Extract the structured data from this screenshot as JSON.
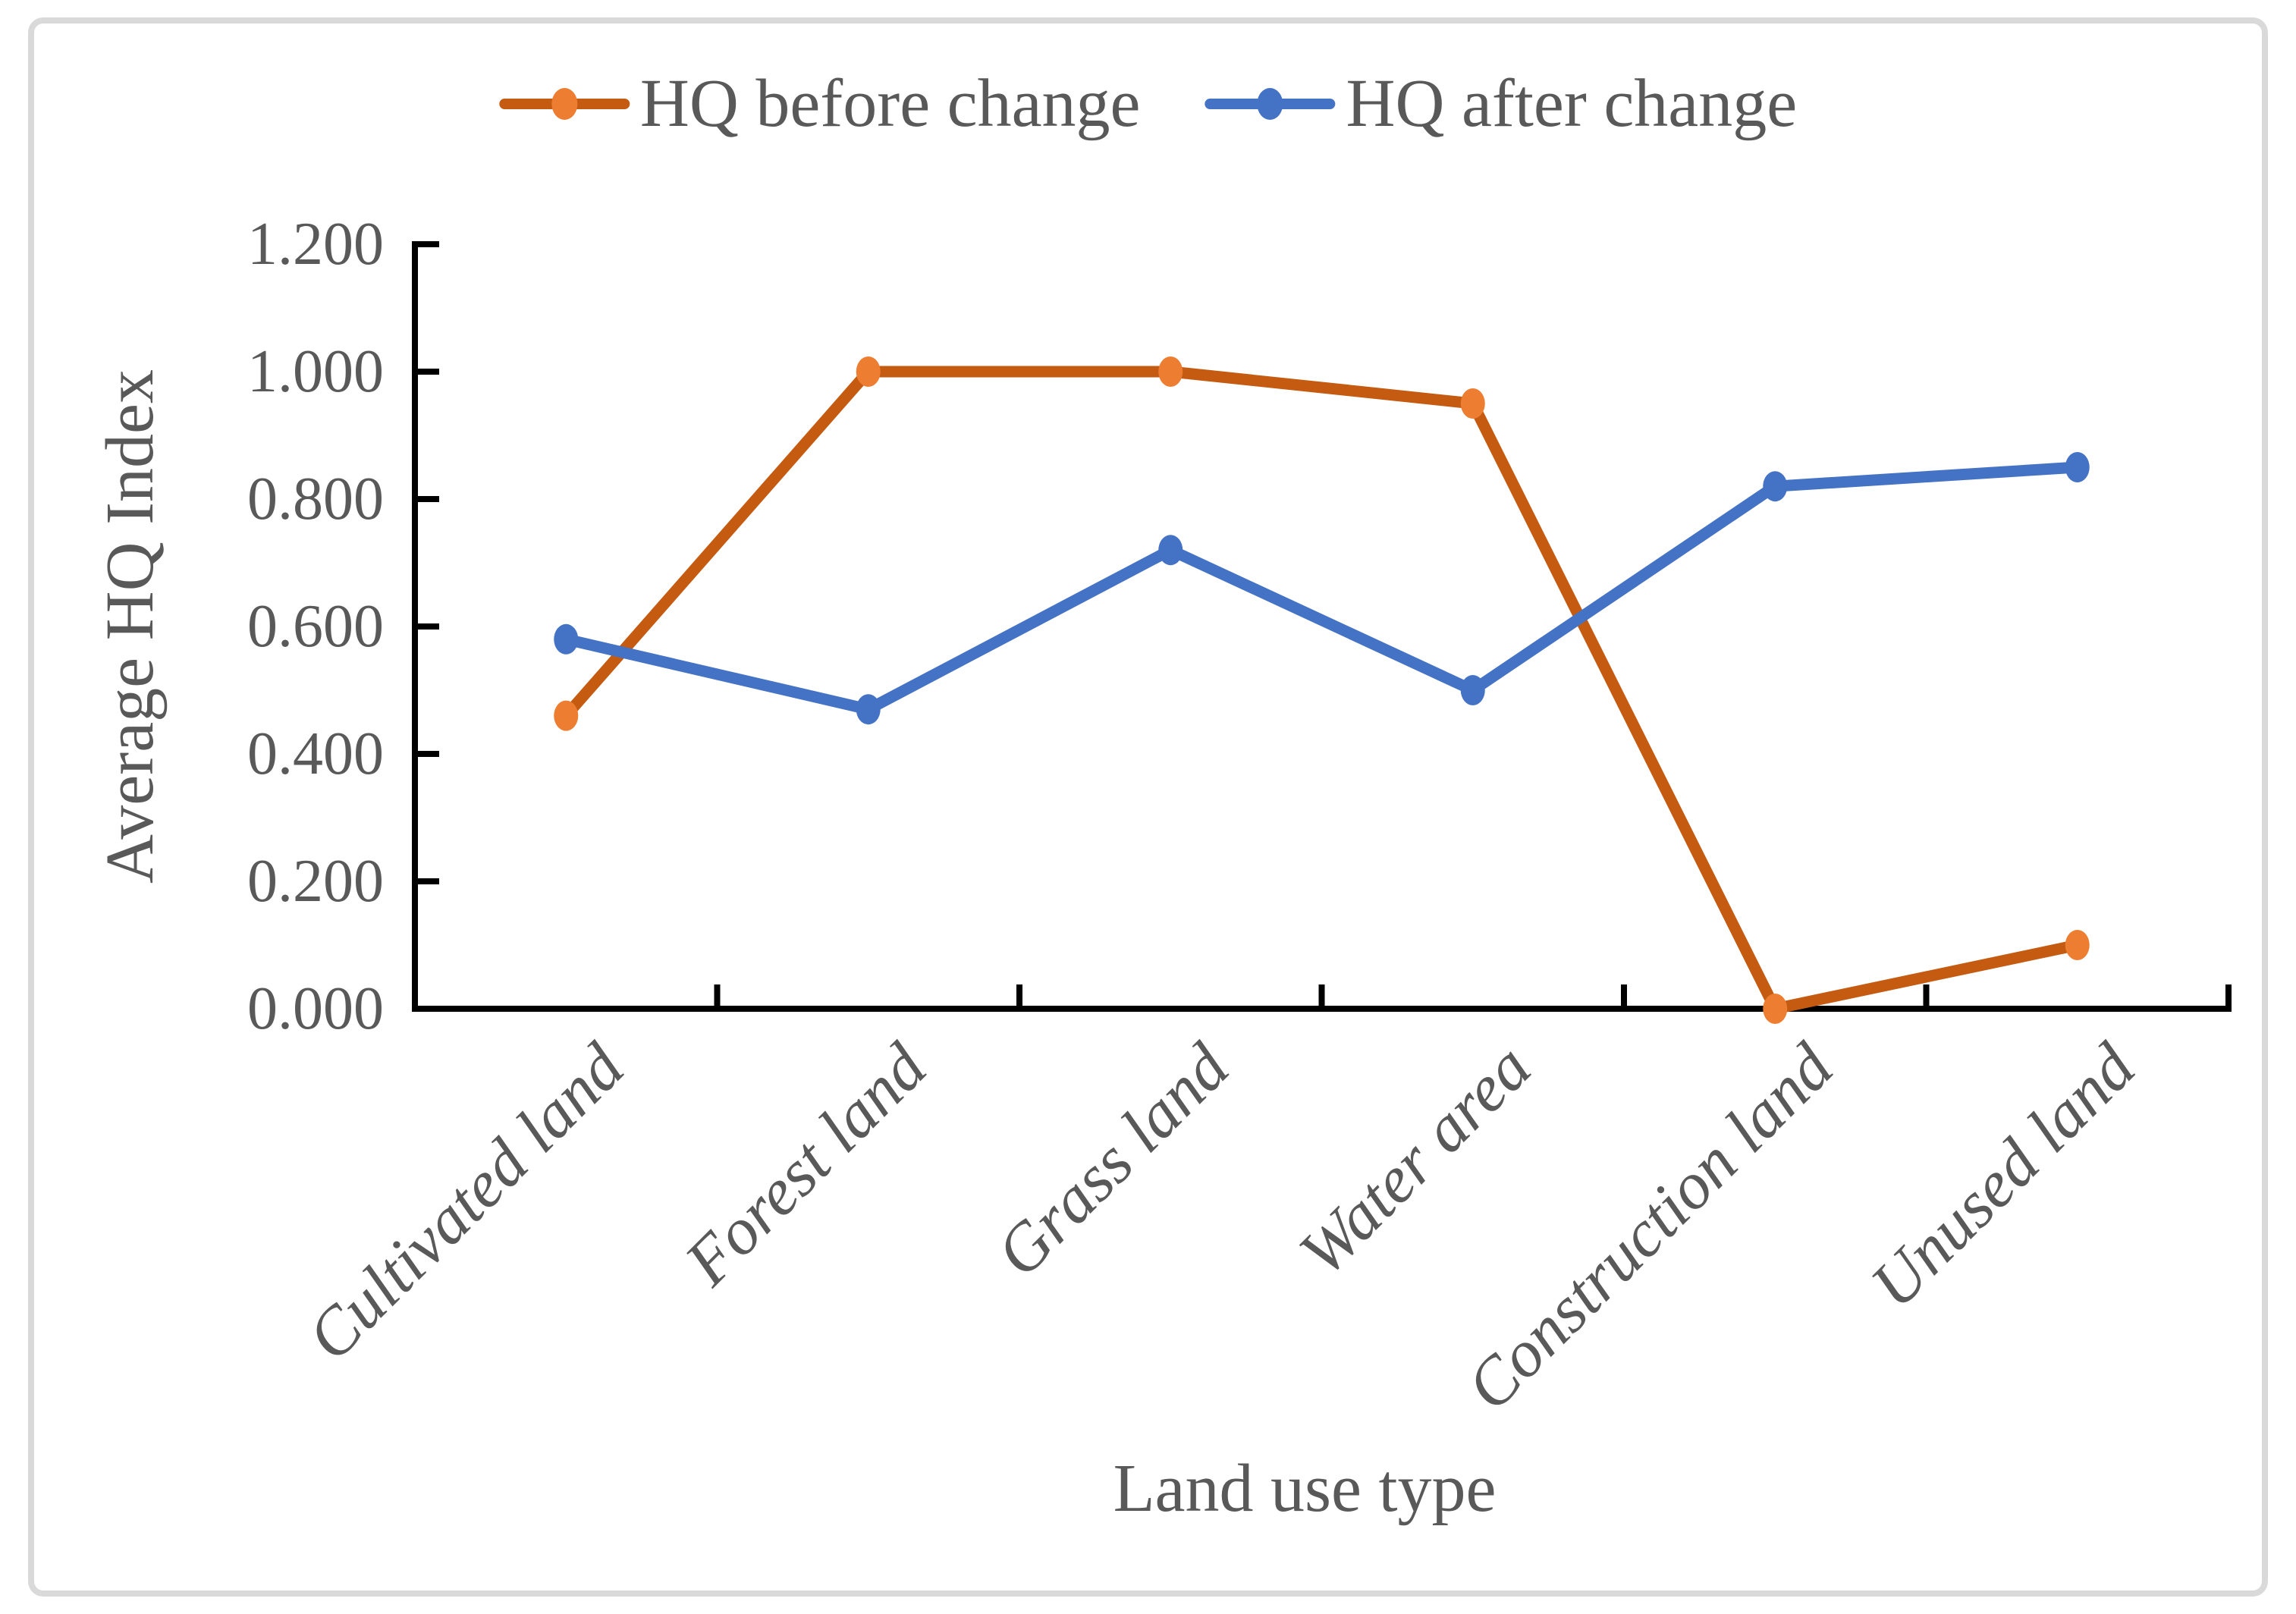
{
  "styles": {
    "text_color": "#595959",
    "axis_color": "#000000",
    "frame_color": "#D9D9D9",
    "background": "#FFFFFF"
  },
  "chart_data": {
    "type": "line",
    "title": "",
    "xlabel": "Land use type",
    "ylabel": "Average HQ Index",
    "categories": [
      "Cultivated land",
      "Forest land",
      "Grass land",
      "Water area",
      "Construction land",
      "Unused land"
    ],
    "series": [
      {
        "name": "HQ before change",
        "values": [
          0.46,
          1.0,
          1.0,
          0.95,
          0.0,
          0.1
        ],
        "line_color": "#C55A11",
        "marker_color": "#ED7D31"
      },
      {
        "name": "HQ after change",
        "values": [
          0.58,
          0.47,
          0.72,
          0.5,
          0.82,
          0.85
        ],
        "line_color": "#4472C4",
        "marker_color": "#4472C4"
      }
    ],
    "ylim": [
      0.0,
      1.2
    ],
    "ytick_step": 0.2,
    "ytick_labels": [
      "0.000",
      "0.200",
      "0.400",
      "0.600",
      "0.800",
      "1.000",
      "1.200"
    ],
    "legend_position": "top",
    "grid": false,
    "marker_shape": "circle",
    "tick_direction": "inside"
  }
}
